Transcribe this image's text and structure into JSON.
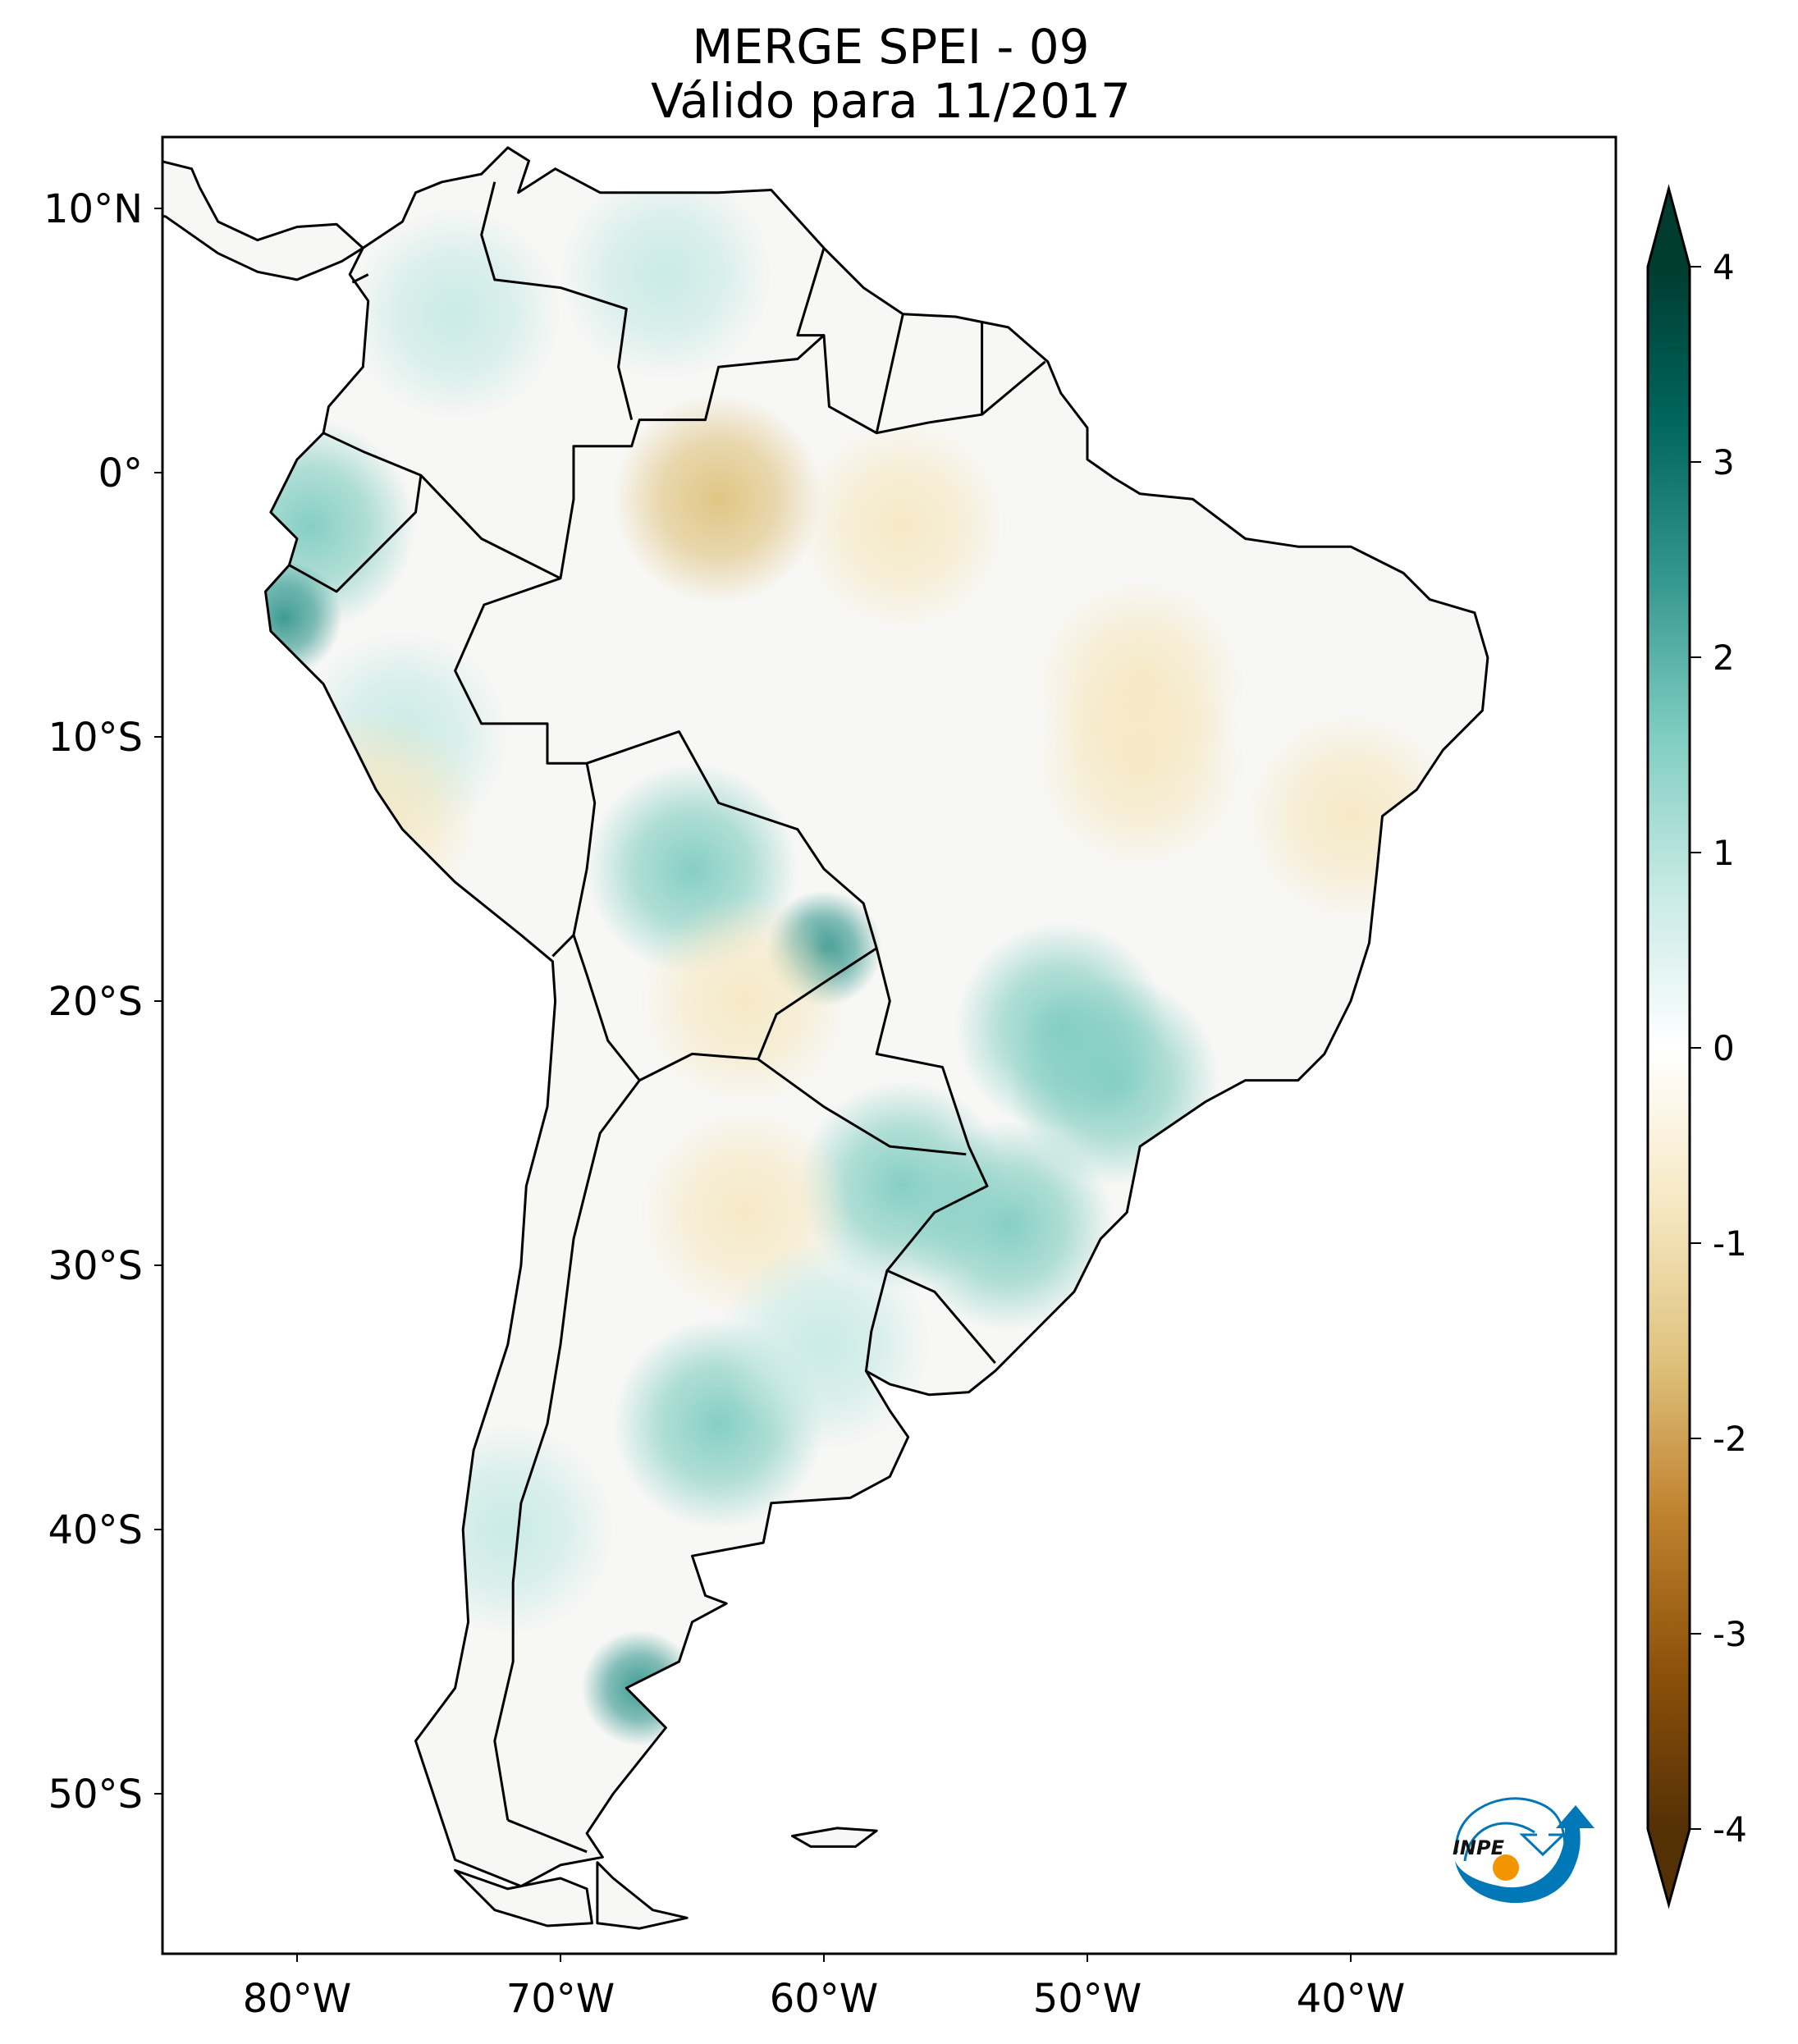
{
  "title": {
    "line1": "MERGE   SPEI - 09",
    "line2": "Válido para 11/2017"
  },
  "chart_data": {
    "type": "heatmap",
    "title": "MERGE   SPEI - 09 / Válido para 11/2017",
    "projection": "lat-lon",
    "lon_range": [
      -85,
      -30
    ],
    "lat_range": [
      -56,
      12.7
    ],
    "x_ticks": [
      {
        "lon": -80,
        "label": "80°W"
      },
      {
        "lon": -70,
        "label": "70°W"
      },
      {
        "lon": -60,
        "label": "60°W"
      },
      {
        "lon": -50,
        "label": "50°W"
      },
      {
        "lon": -40,
        "label": "40°W"
      }
    ],
    "y_ticks": [
      {
        "lat": 10,
        "label": "10°N"
      },
      {
        "lat": 0,
        "label": "0°"
      },
      {
        "lat": -10,
        "label": "10°S"
      },
      {
        "lat": -20,
        "label": "20°S"
      },
      {
        "lat": -30,
        "label": "30°S"
      },
      {
        "lat": -40,
        "label": "40°S"
      },
      {
        "lat": -50,
        "label": "50°S"
      }
    ],
    "colorbar": {
      "range": [
        -4,
        4
      ],
      "extend": "both",
      "ticks": [
        {
          "value": 4,
          "label": "4"
        },
        {
          "value": 3,
          "label": "3"
        },
        {
          "value": 2,
          "label": "2"
        },
        {
          "value": 1,
          "label": "1"
        },
        {
          "value": 0,
          "label": "0"
        },
        {
          "value": -1,
          "label": "-1"
        },
        {
          "value": -2,
          "label": "-2"
        },
        {
          "value": -3,
          "label": "-3"
        },
        {
          "value": -4,
          "label": "-4"
        }
      ],
      "colormap": [
        "#543005",
        "#8c510a",
        "#bf812d",
        "#dfc27d",
        "#f6e8c3",
        "#ffffff",
        "#c7eae5",
        "#80cdc1",
        "#35978f",
        "#01665e",
        "#003c30"
      ]
    },
    "regions": [
      {
        "lon": -74,
        "lat": 6,
        "spei": 1.3
      },
      {
        "lon": -66,
        "lat": 7.5,
        "spei": 1.0
      },
      {
        "lon": -79.5,
        "lat": -2,
        "spei": 2.0
      },
      {
        "lon": -80.5,
        "lat": -5.5,
        "spei": 3.0
      },
      {
        "lon": -64,
        "lat": -1,
        "spei": -1.8
      },
      {
        "lon": -57,
        "lat": -2,
        "spei": -1.0
      },
      {
        "lon": -48,
        "lat": -8,
        "spei": -0.8
      },
      {
        "lon": -40,
        "lat": -13,
        "spei": -0.8
      },
      {
        "lon": -48,
        "lat": -11,
        "spei": -1.2
      },
      {
        "lon": -65,
        "lat": -15,
        "spei": 2.0
      },
      {
        "lon": -60,
        "lat": -18,
        "spei": 2.6
      },
      {
        "lon": -51,
        "lat": -21,
        "spei": 1.5
      },
      {
        "lon": -49,
        "lat": -23,
        "spei": 2.0
      },
      {
        "lon": -57,
        "lat": -27,
        "spei": 2.0
      },
      {
        "lon": -53,
        "lat": -28.5,
        "spei": 1.8
      },
      {
        "lon": -64,
        "lat": -36,
        "spei": 2.3
      },
      {
        "lon": -67,
        "lat": -46,
        "spei": 3.0
      },
      {
        "lon": -63,
        "lat": -28,
        "spei": -0.8
      },
      {
        "lon": -76,
        "lat": -10,
        "spei": 1.3
      },
      {
        "lon": -77,
        "lat": -13,
        "spei": -0.8
      },
      {
        "lon": -63,
        "lat": -20,
        "spei": -0.8
      },
      {
        "lon": -72,
        "lat": -40,
        "spei": 1.0
      },
      {
        "lon": -60,
        "lat": -33,
        "spei": 0.8
      }
    ]
  },
  "logo": {
    "text": "INPE",
    "colors": {
      "blue": "#0077b6",
      "orange": "#f29500"
    }
  }
}
